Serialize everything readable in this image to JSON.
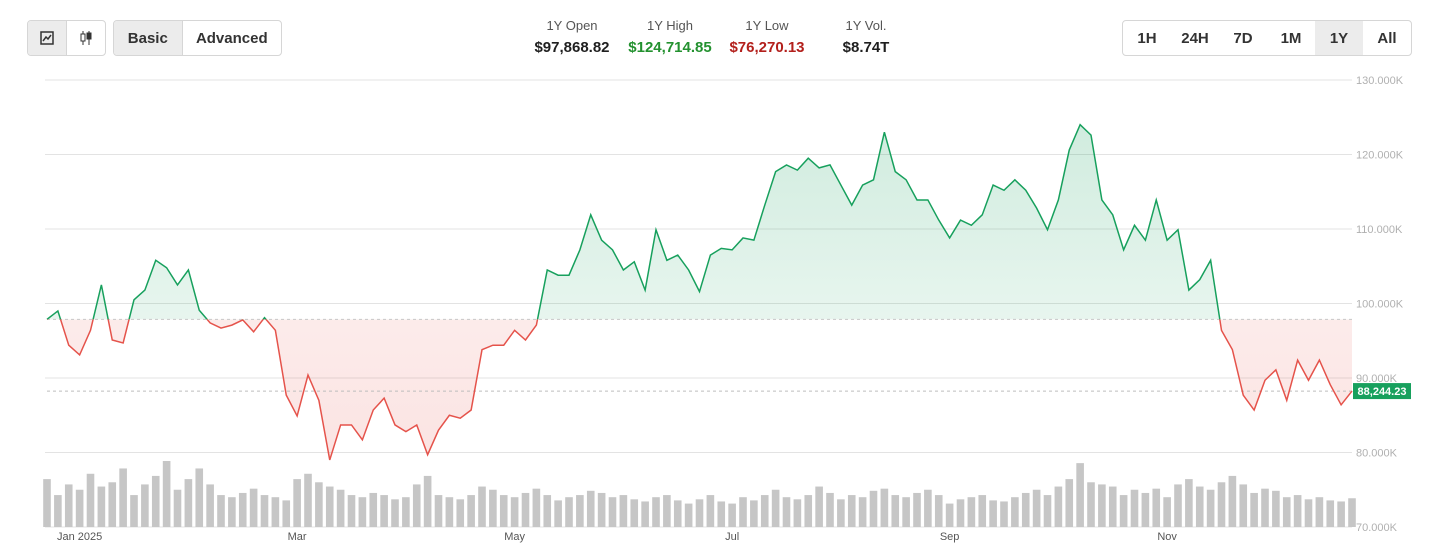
{
  "toolbar": {
    "modes": [
      {
        "label": "Basic",
        "active": true
      },
      {
        "label": "Advanced",
        "active": false
      }
    ],
    "stats": [
      {
        "label": "1Y Open",
        "value": "$97,868.82",
        "color": "#1f1f1f"
      },
      {
        "label": "1Y High",
        "value": "$124,714.85",
        "color": "#23912f"
      },
      {
        "label": "1Y Low",
        "value": "$76,270.13",
        "color": "#b3201c"
      },
      {
        "label": "1Y Vol.",
        "value": "$8.74T",
        "color": "#1f1f1f"
      }
    ],
    "ranges": [
      {
        "label": "1H",
        "active": false
      },
      {
        "label": "24H",
        "active": false
      },
      {
        "label": "7D",
        "active": false
      },
      {
        "label": "1M",
        "active": false
      },
      {
        "label": "1Y",
        "active": true
      },
      {
        "label": "All",
        "active": false
      }
    ]
  },
  "chart_data": {
    "type": "area",
    "categories": [
      null,
      null,
      null,
      "Jan 2025",
      null,
      null,
      null,
      null,
      null,
      null,
      null,
      null,
      null,
      null,
      null,
      null,
      null,
      null,
      null,
      null,
      null,
      null,
      null,
      "Mar",
      null,
      null,
      null,
      null,
      null,
      null,
      null,
      null,
      null,
      null,
      null,
      null,
      null,
      null,
      null,
      null,
      null,
      null,
      null,
      "May",
      null,
      null,
      null,
      null,
      null,
      null,
      null,
      null,
      null,
      null,
      null,
      null,
      null,
      null,
      null,
      null,
      null,
      null,
      null,
      "Jul",
      null,
      null,
      null,
      null,
      null,
      null,
      null,
      null,
      null,
      null,
      null,
      null,
      null,
      null,
      null,
      null,
      null,
      null,
      null,
      "Sep",
      null,
      null,
      null,
      null,
      null,
      null,
      null,
      null,
      null,
      null,
      null,
      null,
      null,
      null,
      null,
      null,
      null,
      null,
      null,
      "Nov",
      null,
      null,
      null,
      null,
      null,
      null,
      null,
      null,
      null,
      null,
      null,
      null,
      null,
      null,
      null,
      null,
      null
    ],
    "values": [
      97868.82,
      99000,
      94400,
      93100,
      96400,
      102500,
      95100,
      94700,
      100500,
      101800,
      105800,
      104800,
      102500,
      104500,
      99100,
      97400,
      96700,
      97100,
      97800,
      96200,
      98100,
      96400,
      87700,
      84900,
      90400,
      87000,
      79000,
      83700,
      83700,
      81700,
      85700,
      87300,
      83700,
      82800,
      83700,
      79700,
      83000,
      85000,
      84600,
      85700,
      93800,
      94400,
      94400,
      96400,
      95100,
      97100,
      104500,
      103800,
      103800,
      107200,
      111900,
      108500,
      107200,
      104500,
      105600,
      101800,
      109900,
      105800,
      106500,
      104500,
      101600,
      106500,
      107400,
      107200,
      108800,
      108500,
      113200,
      117700,
      118600,
      117900,
      119500,
      118200,
      118600,
      115900,
      113200,
      115900,
      116600,
      123000,
      117700,
      116600,
      113900,
      113900,
      111200,
      108800,
      111200,
      110500,
      111900,
      115900,
      115200,
      116600,
      115200,
      112800,
      109900,
      113900,
      120600,
      124000,
      122600,
      113900,
      111900,
      107200,
      110500,
      108500,
      113900,
      108500,
      109900,
      101800,
      103200,
      105800,
      96400,
      93800,
      87700,
      85700,
      89700,
      91100,
      87000,
      92400,
      89700,
      92400,
      89100,
      86400,
      88244.23
    ],
    "value_labels": [
      null,
      null,
      null,
      null,
      null,
      null,
      null,
      null,
      null,
      null,
      null,
      null,
      null,
      null,
      null,
      null,
      null,
      null,
      null,
      null,
      null,
      null,
      null,
      null,
      null,
      null,
      null,
      null,
      null,
      null,
      null,
      null,
      null,
      null,
      null,
      null,
      null,
      null,
      null,
      null,
      null,
      null,
      null,
      null,
      null,
      null,
      null,
      null,
      null,
      null,
      null,
      null,
      null,
      null,
      null,
      null,
      null,
      null,
      null,
      null,
      null,
      null,
      null,
      null,
      null,
      null,
      null,
      null,
      null,
      null,
      null,
      null,
      null,
      null,
      null,
      null,
      null,
      null,
      null,
      null,
      null,
      null,
      null,
      null,
      null,
      null,
      null,
      null,
      null,
      null,
      null,
      null,
      null,
      null,
      null,
      null,
      null,
      null,
      null,
      null,
      null,
      null,
      null,
      null,
      null,
      null,
      null,
      null,
      null,
      null,
      null,
      null,
      null,
      null,
      null,
      null,
      null,
      null,
      null,
      null,
      "88,244.23"
    ],
    "color_up": "#17a05d",
    "color_down": "#e5534b",
    "volume": {
      "color": "#c6c6c6",
      "values": [
        45,
        30,
        40,
        35,
        50,
        38,
        42,
        55,
        30,
        40,
        48,
        62,
        35,
        45,
        55,
        40,
        30,
        28,
        32,
        36,
        30,
        28,
        25,
        45,
        50,
        42,
        38,
        35,
        30,
        28,
        32,
        30,
        26,
        28,
        40,
        48,
        30,
        28,
        26,
        30,
        38,
        35,
        30,
        28,
        32,
        36,
        30,
        25,
        28,
        30,
        34,
        32,
        28,
        30,
        26,
        24,
        28,
        30,
        25,
        22,
        26,
        30,
        24,
        22,
        28,
        25,
        30,
        35,
        28,
        26,
        30,
        38,
        32,
        26,
        30,
        28,
        34,
        36,
        30,
        28,
        32,
        35,
        30,
        22,
        26,
        28,
        30,
        25,
        24,
        28,
        32,
        35,
        30,
        38,
        45,
        60,
        42,
        40,
        38,
        30,
        35,
        32,
        36,
        28,
        40,
        45,
        38,
        35,
        42,
        48,
        40,
        32,
        36,
        34,
        28,
        30,
        26,
        28,
        25,
        24,
        27
      ]
    },
    "ylim": [
      70000,
      130000
    ],
    "yticks": [
      {
        "value": 70000,
        "label": "70.000K"
      },
      {
        "value": 80000,
        "label": "80.000K"
      },
      {
        "value": 90000,
        "label": "90.000K"
      },
      {
        "value": 100000,
        "label": "100.000K"
      },
      {
        "value": 110000,
        "label": "110.000K"
      },
      {
        "value": 120000,
        "label": "120.000K"
      },
      {
        "value": 130000,
        "label": "130.000K"
      }
    ],
    "grid": true
  }
}
